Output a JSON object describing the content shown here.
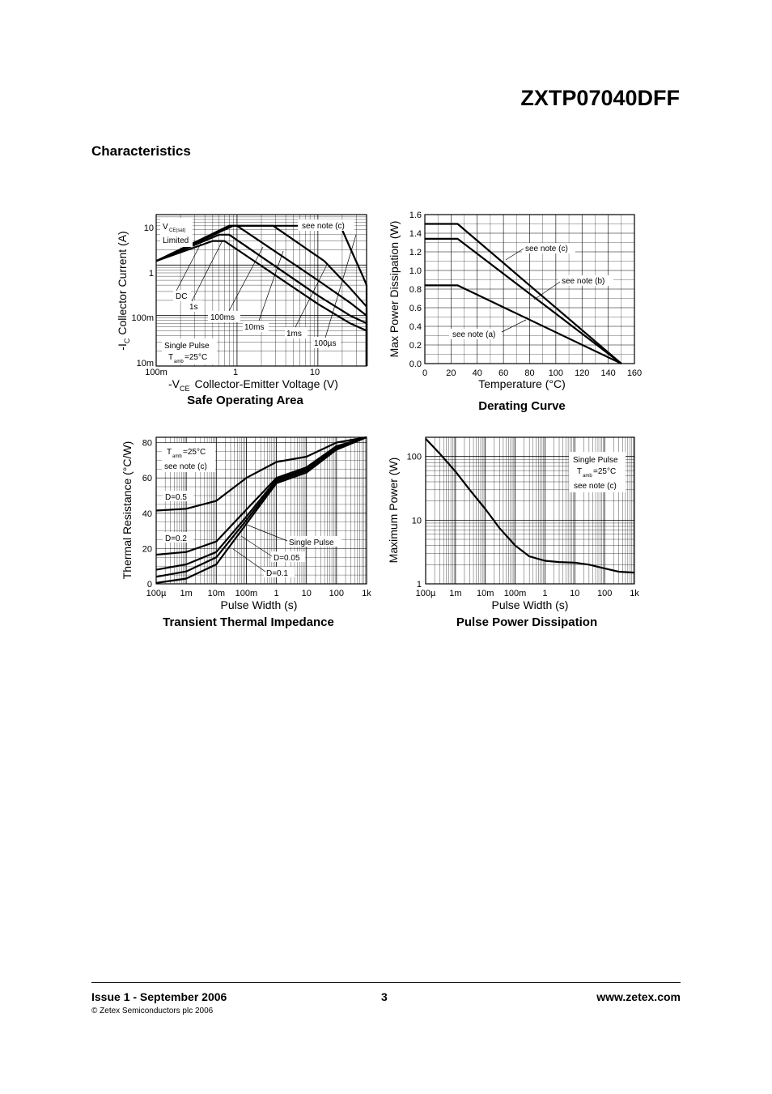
{
  "header": {
    "part_number": "ZXTP07040DFF"
  },
  "section": {
    "title": "Characteristics"
  },
  "chart_data": [
    {
      "id": "soa",
      "type": "line",
      "title": "Safe Operating Area",
      "xlabel": "Collector-Emitter Voltage (V)",
      "xlabel_prefix": "-V",
      "xlabel_sub": "CE",
      "ylabel": "Collector Current (A)",
      "ylabel_prefix": "-I",
      "ylabel_sub": "C",
      "x_scale": "log",
      "y_scale": "log",
      "xlim": [
        0.1,
        40
      ],
      "ylim": [
        0.01,
        10
      ],
      "x_tick_labels": [
        "100m",
        "1",
        "10"
      ],
      "y_tick_labels": [
        "10m",
        "100m",
        "1",
        "10"
      ],
      "annotations": [
        "V",
        "CE(sat)",
        "Limited",
        "see note (c)",
        "DC",
        "1s",
        "100ms",
        "10ms",
        "1ms",
        "100µs",
        "Single Pulse",
        "T",
        "amb",
        "=25°C"
      ],
      "series": [
        {
          "name": "100µs",
          "x": [
            0.1,
            0.9,
            19,
            25,
            36,
            40,
            40
          ],
          "y": [
            1.2,
            6,
            6,
            2.2,
            0.6,
            0.4,
            0.01
          ]
        },
        {
          "name": "1ms",
          "x": [
            0.1,
            0.8,
            2.8,
            12,
            25,
            40,
            40
          ],
          "y": [
            1.2,
            6,
            6,
            1.2,
            0.35,
            0.15,
            0.01
          ]
        },
        {
          "name": "10ms",
          "x": [
            0.1,
            0.8,
            1.0,
            10,
            25,
            40,
            40
          ],
          "y": [
            1.2,
            6,
            6,
            0.5,
            0.18,
            0.1,
            0.01
          ]
        },
        {
          "name": "100ms",
          "x": [
            0.1,
            0.6,
            0.8,
            10,
            25,
            40,
            40
          ],
          "y": [
            1.2,
            4,
            4,
            0.25,
            0.1,
            0.07,
            0.01
          ]
        },
        {
          "name": "1s/DC",
          "x": [
            0.1,
            0.5,
            0.7,
            10,
            25,
            40,
            40
          ],
          "y": [
            1.2,
            3,
            3,
            0.17,
            0.07,
            0.05,
            0.01
          ]
        }
      ]
    },
    {
      "id": "derating",
      "type": "line",
      "title": "Derating Curve",
      "xlabel": "Temperature (°C)",
      "ylabel": "Max Power Dissipation (W)",
      "xlim": [
        0,
        160
      ],
      "ylim": [
        0,
        1.6
      ],
      "x_tick_labels": [
        "0",
        "20",
        "40",
        "60",
        "80",
        "100",
        "120",
        "140",
        "160"
      ],
      "y_tick_labels": [
        "0.0",
        "0.2",
        "0.4",
        "0.6",
        "0.8",
        "1.0",
        "1.2",
        "1.4",
        "1.6"
      ],
      "annotations": [
        "see note (c)",
        "see note (b)",
        "see note (a)"
      ],
      "series": [
        {
          "name": "see note (c)",
          "x": [
            0,
            25,
            150
          ],
          "y": [
            1.5,
            1.5,
            0
          ]
        },
        {
          "name": "see note (b)",
          "x": [
            0,
            25,
            150
          ],
          "y": [
            1.34,
            1.34,
            0
          ]
        },
        {
          "name": "see note (a)",
          "x": [
            0,
            25,
            150
          ],
          "y": [
            0.84,
            0.84,
            0
          ]
        }
      ]
    },
    {
      "id": "transient",
      "type": "line",
      "title": "Transient Thermal Impedance",
      "xlabel": "Pulse Width (s)",
      "ylabel": "Thermal Resistance (°C/W)",
      "x_scale": "log",
      "xlim": [
        0.0001,
        1000
      ],
      "ylim": [
        0,
        83
      ],
      "x_tick_labels": [
        "100µ",
        "1m",
        "10m",
        "100m",
        "1",
        "10",
        "100",
        "1k"
      ],
      "y_tick_labels": [
        "0",
        "20",
        "40",
        "60",
        "80"
      ],
      "annotations": [
        "T",
        "amb",
        "=25°C",
        "see note (c)",
        "D=0.5",
        "D=0.2",
        "Single Pulse",
        "D=0.05",
        "D=0.1"
      ],
      "series": [
        {
          "name": "D=0.5",
          "x": [
            0.0001,
            0.001,
            0.01,
            0.1,
            1,
            10,
            100,
            1000
          ],
          "y": [
            41.5,
            42.5,
            47,
            60,
            69,
            72,
            80,
            83
          ]
        },
        {
          "name": "D=0.2",
          "x": [
            0.0001,
            0.001,
            0.01,
            0.1,
            1,
            10,
            100,
            1000
          ],
          "y": [
            16.5,
            18,
            24,
            42,
            60,
            66,
            78,
            83
          ]
        },
        {
          "name": "D=0.1",
          "x": [
            0.0001,
            0.001,
            0.01,
            0.1,
            1,
            10,
            100,
            1000
          ],
          "y": [
            8,
            11,
            18,
            38,
            59,
            65,
            77,
            83
          ]
        },
        {
          "name": "D=0.05",
          "x": [
            0.0001,
            0.001,
            0.01,
            0.1,
            1,
            10,
            100,
            1000
          ],
          "y": [
            4,
            7,
            15,
            36,
            58,
            64,
            77,
            83
          ]
        },
        {
          "name": "Single Pulse",
          "x": [
            0.0001,
            0.001,
            0.01,
            0.1,
            1,
            10,
            100,
            1000
          ],
          "y": [
            0.5,
            3,
            11,
            34,
            57,
            63,
            76,
            83
          ]
        }
      ]
    },
    {
      "id": "pulse_power",
      "type": "line",
      "title": "Pulse Power Dissipation",
      "xlabel": "Pulse Width (s)",
      "ylabel": "Maximum Power (W)",
      "x_scale": "log",
      "y_scale": "log",
      "xlim": [
        0.0001,
        1000
      ],
      "ylim": [
        1,
        200
      ],
      "x_tick_labels": [
        "100µ",
        "1m",
        "10m",
        "100m",
        "1",
        "10",
        "100",
        "1k"
      ],
      "y_tick_labels": [
        "1",
        "10",
        "100"
      ],
      "annotations": [
        "Single Pulse",
        "T",
        "amb",
        "=25°C",
        "see note (c)"
      ],
      "series": [
        {
          "name": "Single Pulse",
          "x": [
            0.0001,
            0.0003,
            0.001,
            0.003,
            0.01,
            0.03,
            0.1,
            0.3,
            1,
            3,
            10,
            30,
            100,
            300,
            1000
          ],
          "y": [
            190,
            110,
            58,
            30,
            15,
            7.5,
            4,
            2.7,
            2.3,
            2.2,
            2.15,
            2.0,
            1.75,
            1.55,
            1.5
          ]
        }
      ]
    }
  ],
  "footer": {
    "issue": "Issue 1 - September 2006",
    "page": "3",
    "website": "www.zetex.com",
    "copyright": "© Zetex Semiconductors plc 2006"
  }
}
